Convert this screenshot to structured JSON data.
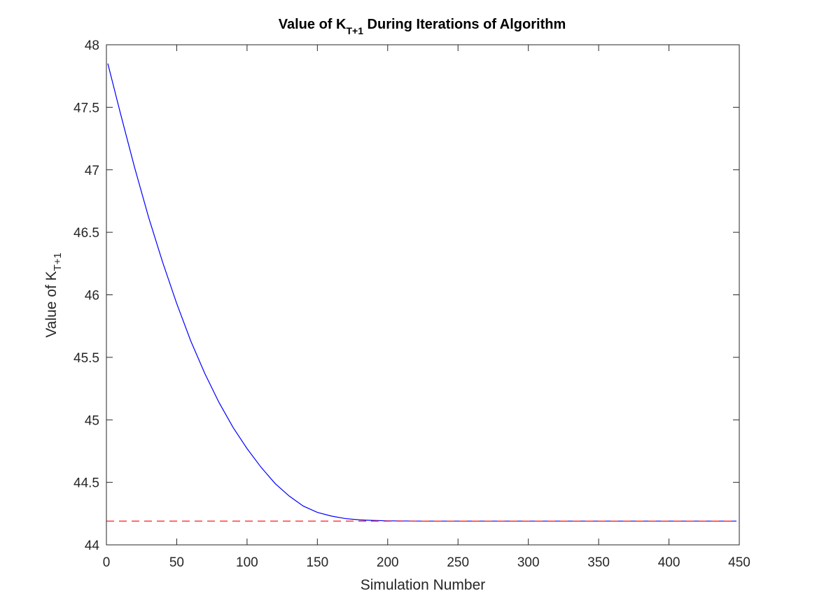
{
  "chart_data": {
    "type": "line",
    "title": {
      "prefix": "Value of K",
      "subscript": "T+1",
      "suffix": " During Iterations of Algorithm"
    },
    "xlabel": "Simulation Number",
    "ylabel": {
      "prefix": "Value of K",
      "subscript": "T+1"
    },
    "xlim": [
      0,
      450
    ],
    "ylim": [
      44,
      48
    ],
    "xticks": [
      0,
      50,
      100,
      150,
      200,
      250,
      300,
      350,
      400,
      450
    ],
    "yticks": [
      44,
      44.5,
      45,
      45.5,
      46,
      46.5,
      47,
      47.5,
      48
    ],
    "grid": false,
    "series": [
      {
        "style": "solid",
        "color": "#0000ff",
        "x": [
          1,
          10,
          20,
          30,
          40,
          50,
          60,
          70,
          80,
          90,
          100,
          110,
          120,
          130,
          140,
          150,
          160,
          170,
          180,
          190,
          200,
          225,
          250,
          300,
          350,
          400,
          448
        ],
        "y": [
          47.85,
          47.45,
          47.02,
          46.62,
          46.26,
          45.93,
          45.63,
          45.37,
          45.14,
          44.94,
          44.77,
          44.62,
          44.49,
          44.39,
          44.31,
          44.26,
          44.23,
          44.21,
          44.2,
          44.195,
          44.192,
          44.19,
          44.19,
          44.19,
          44.19,
          44.19,
          44.19
        ]
      },
      {
        "style": "dashed",
        "color": "#ff0000",
        "x": [
          0,
          448
        ],
        "y": [
          44.19,
          44.19
        ]
      }
    ]
  }
}
